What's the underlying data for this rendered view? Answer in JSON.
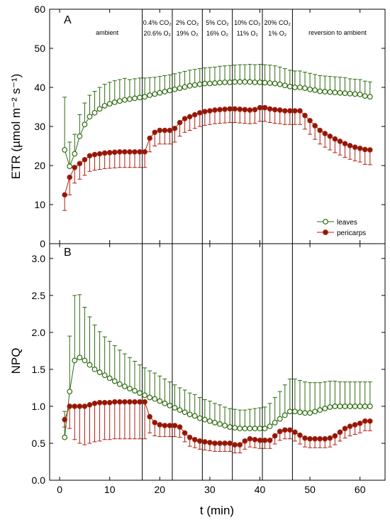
{
  "colors": {
    "leaves": "#2e6b10",
    "pericarps": "#b01e10",
    "pericarps_fill": "#8a1a0a"
  },
  "chart_data": [
    {
      "type": "line",
      "panel": "A",
      "ylabel": "ETR (µmol m⁻² s⁻¹)",
      "xlim": [
        -2,
        65
      ],
      "ylim": [
        0,
        60
      ],
      "xticks": [
        0,
        10,
        20,
        30,
        40,
        50,
        60
      ],
      "yticks": [
        0,
        10,
        20,
        30,
        40,
        50,
        60
      ],
      "x": [
        1,
        2,
        3,
        4,
        5,
        6,
        7,
        8,
        9,
        10,
        11,
        12,
        13,
        14,
        15,
        16,
        17,
        18,
        19,
        20,
        21,
        22,
        23,
        24,
        25,
        26,
        27,
        28,
        29,
        30,
        31,
        32,
        33,
        34,
        35,
        36,
        37,
        38,
        39,
        40,
        41,
        42,
        43,
        44,
        45,
        46,
        47,
        48,
        49,
        50,
        51,
        52,
        53,
        54,
        55,
        56,
        57,
        58,
        59,
        60,
        61,
        62
      ],
      "series": [
        {
          "name": "leaves",
          "values": [
            24.0,
            19.8,
            23.0,
            27.5,
            30.5,
            32.5,
            33.5,
            34.5,
            35.3,
            35.8,
            36.2,
            36.5,
            36.8,
            37.0,
            37.2,
            37.4,
            37.6,
            38.0,
            38.3,
            38.6,
            38.9,
            39.2,
            39.5,
            39.8,
            40.1,
            40.4,
            40.6,
            40.8,
            41.0,
            41.0,
            41.1,
            41.2,
            41.3,
            41.3,
            41.4,
            41.4,
            41.4,
            41.4,
            41.3,
            41.3,
            41.2,
            41.1,
            41.0,
            40.8,
            40.5,
            40.2,
            40.0,
            40.0,
            39.8,
            39.5,
            39.3,
            39.0,
            38.9,
            38.8,
            38.7,
            38.6,
            38.5,
            38.4,
            38.3,
            38.2,
            37.8,
            37.6
          ],
          "error_plus": [
            13.5,
            6.2,
            5.0,
            5.5,
            5.5,
            5.5,
            5.5,
            5.5,
            5.5,
            5.5,
            5.5,
            5.5,
            5.5,
            5.0,
            5.0,
            5.0,
            4.8,
            4.5,
            4.3,
            4.2,
            4.1,
            4.0,
            4.0,
            4.0,
            4.0,
            4.0,
            4.0,
            4.0,
            4.0,
            4.1,
            4.1,
            4.2,
            4.2,
            4.3,
            4.3,
            4.4,
            4.4,
            4.5,
            4.5,
            4.6,
            4.6,
            4.6,
            4.5,
            4.4,
            4.3,
            4.2,
            4.2,
            4.2,
            4.1,
            4.1,
            4.0,
            4.0,
            4.0,
            4.0,
            4.0,
            4.0,
            4.0,
            3.8,
            3.8,
            3.8,
            3.8,
            3.8
          ]
        },
        {
          "name": "pericarps",
          "values": [
            12.5,
            17.0,
            19.5,
            20.5,
            21.5,
            22.5,
            22.8,
            23.0,
            23.2,
            23.3,
            23.4,
            23.5,
            23.5,
            23.5,
            23.5,
            23.5,
            23.5,
            27.0,
            28.5,
            29.0,
            29.0,
            29.0,
            29.5,
            31.0,
            32.0,
            32.5,
            33.0,
            33.5,
            33.8,
            34.0,
            34.2,
            34.3,
            34.4,
            34.5,
            34.5,
            34.4,
            34.3,
            34.2,
            34.3,
            34.8,
            34.8,
            34.5,
            34.3,
            34.2,
            34.0,
            34.0,
            34.0,
            34.0,
            32.8,
            31.5,
            30.2,
            29.0,
            28.2,
            27.5,
            26.8,
            26.2,
            25.6,
            25.1,
            24.7,
            24.4,
            24.1,
            24.0
          ],
          "error_minus": [
            4.0,
            4.5,
            4.0,
            4.0,
            4.0,
            4.0,
            4.0,
            4.0,
            4.0,
            4.0,
            4.0,
            4.0,
            4.0,
            4.0,
            4.0,
            4.0,
            4.0,
            3.5,
            3.5,
            3.5,
            3.5,
            3.5,
            3.5,
            3.5,
            3.5,
            3.5,
            3.5,
            3.5,
            3.5,
            3.5,
            3.5,
            3.5,
            3.5,
            3.5,
            3.5,
            3.5,
            3.5,
            3.5,
            3.5,
            3.5,
            3.5,
            3.5,
            3.5,
            3.5,
            3.5,
            3.5,
            3.5,
            3.5,
            3.5,
            3.5,
            3.5,
            3.5,
            3.5,
            3.5,
            3.5,
            3.5,
            3.5,
            3.5,
            3.5,
            3.5,
            3.8,
            3.8
          ]
        }
      ],
      "vlines": [
        16.5,
        22.5,
        28.5,
        34.5,
        40.5,
        46.5
      ],
      "annotations": [
        {
          "text": "ambient",
          "x": 9.5,
          "row": 1
        },
        {
          "text": "0.4% CO₂",
          "x": 19.5,
          "row": 0
        },
        {
          "text": "20.6% O₂",
          "x": 19.5,
          "row": 1
        },
        {
          "text": "2% CO₂",
          "x": 25.5,
          "row": 0
        },
        {
          "text": "19% O₂",
          "x": 25.5,
          "row": 1
        },
        {
          "text": "5% CO₂",
          "x": 31.5,
          "row": 0
        },
        {
          "text": "16% O₂",
          "x": 31.5,
          "row": 1
        },
        {
          "text": "10% CO₂",
          "x": 37.5,
          "row": 0
        },
        {
          "text": "11% O₂",
          "x": 37.5,
          "row": 1
        },
        {
          "text": "20% CO₂",
          "x": 43.5,
          "row": 0
        },
        {
          "text": "1% O₂",
          "x": 43.5,
          "row": 1
        },
        {
          "text": "reversion to ambient",
          "x": 55.5,
          "row": 1
        }
      ],
      "legend": {
        "position": "bottom-right",
        "entries": [
          "leaves",
          "pericarps"
        ]
      }
    },
    {
      "type": "line",
      "panel": "B",
      "ylabel": "NPQ",
      "xlabel": "t (min)",
      "xlim": [
        -2,
        65
      ],
      "ylim": [
        0,
        3.2
      ],
      "xticks": [
        0,
        10,
        20,
        30,
        40,
        50,
        60
      ],
      "yticks": [
        0.0,
        0.5,
        1.0,
        1.5,
        2.0,
        2.5,
        3.0
      ],
      "x": [
        1,
        2,
        3,
        4,
        5,
        6,
        7,
        8,
        9,
        10,
        11,
        12,
        13,
        14,
        15,
        16,
        17,
        18,
        19,
        20,
        21,
        22,
        23,
        24,
        25,
        26,
        27,
        28,
        29,
        30,
        31,
        32,
        33,
        34,
        35,
        36,
        37,
        38,
        39,
        40,
        41,
        42,
        43,
        44,
        45,
        46,
        47,
        48,
        49,
        50,
        51,
        52,
        53,
        54,
        55,
        56,
        57,
        58,
        59,
        60,
        61,
        62
      ],
      "series": [
        {
          "name": "leaves",
          "values": [
            0.58,
            1.2,
            1.62,
            1.66,
            1.62,
            1.56,
            1.5,
            1.46,
            1.42,
            1.38,
            1.34,
            1.3,
            1.27,
            1.24,
            1.21,
            1.18,
            1.15,
            1.12,
            1.1,
            1.07,
            1.04,
            1.01,
            0.98,
            0.95,
            0.92,
            0.89,
            0.87,
            0.84,
            0.82,
            0.8,
            0.78,
            0.76,
            0.74,
            0.72,
            0.71,
            0.7,
            0.7,
            0.7,
            0.7,
            0.7,
            0.7,
            0.73,
            0.78,
            0.83,
            0.88,
            0.93,
            0.93,
            0.92,
            0.91,
            0.91,
            0.93,
            0.95,
            0.97,
            0.99,
            1.0,
            1.0,
            1.0,
            1.0,
            1.0,
            1.0,
            1.0,
            1.0
          ],
          "error_plus": [
            0.35,
            0.75,
            0.88,
            0.85,
            0.72,
            0.65,
            0.6,
            0.55,
            0.52,
            0.5,
            0.48,
            0.46,
            0.44,
            0.42,
            0.4,
            0.38,
            0.37,
            0.36,
            0.35,
            0.34,
            0.33,
            0.32,
            0.31,
            0.3,
            0.3,
            0.29,
            0.29,
            0.28,
            0.27,
            0.27,
            0.26,
            0.26,
            0.25,
            0.25,
            0.25,
            0.25,
            0.25,
            0.26,
            0.27,
            0.28,
            0.29,
            0.31,
            0.34,
            0.37,
            0.41,
            0.44,
            0.44,
            0.43,
            0.42,
            0.41,
            0.39,
            0.37,
            0.36,
            0.35,
            0.34,
            0.33,
            0.33,
            0.33,
            0.33,
            0.33,
            0.33,
            0.33
          ]
        },
        {
          "name": "pericarps",
          "values": [
            0.82,
            1.0,
            1.0,
            1.0,
            1.0,
            1.02,
            1.04,
            1.05,
            1.05,
            1.05,
            1.06,
            1.06,
            1.06,
            1.06,
            1.06,
            1.06,
            1.06,
            0.86,
            0.78,
            0.75,
            0.74,
            0.74,
            0.74,
            0.72,
            0.64,
            0.58,
            0.55,
            0.53,
            0.52,
            0.51,
            0.5,
            0.5,
            0.5,
            0.5,
            0.48,
            0.48,
            0.53,
            0.56,
            0.55,
            0.54,
            0.54,
            0.54,
            0.6,
            0.66,
            0.68,
            0.68,
            0.65,
            0.61,
            0.57,
            0.56,
            0.56,
            0.56,
            0.56,
            0.57,
            0.6,
            0.65,
            0.7,
            0.73,
            0.75,
            0.77,
            0.8,
            0.8
          ],
          "error_minus": [
            0.1,
            0.3,
            0.45,
            0.5,
            0.52,
            0.52,
            0.52,
            0.52,
            0.5,
            0.5,
            0.5,
            0.5,
            0.5,
            0.5,
            0.5,
            0.5,
            0.5,
            0.22,
            0.18,
            0.16,
            0.15,
            0.15,
            0.15,
            0.14,
            0.12,
            0.12,
            0.11,
            0.11,
            0.11,
            0.11,
            0.11,
            0.11,
            0.11,
            0.11,
            0.11,
            0.11,
            0.11,
            0.11,
            0.11,
            0.11,
            0.11,
            0.11,
            0.11,
            0.12,
            0.12,
            0.12,
            0.12,
            0.12,
            0.12,
            0.12,
            0.12,
            0.12,
            0.12,
            0.12,
            0.12,
            0.12,
            0.13,
            0.13,
            0.13,
            0.13,
            0.13,
            0.13
          ]
        }
      ],
      "vlines": [
        16.5,
        22.5,
        28.5,
        34.5,
        40.5,
        46.5
      ]
    }
  ]
}
